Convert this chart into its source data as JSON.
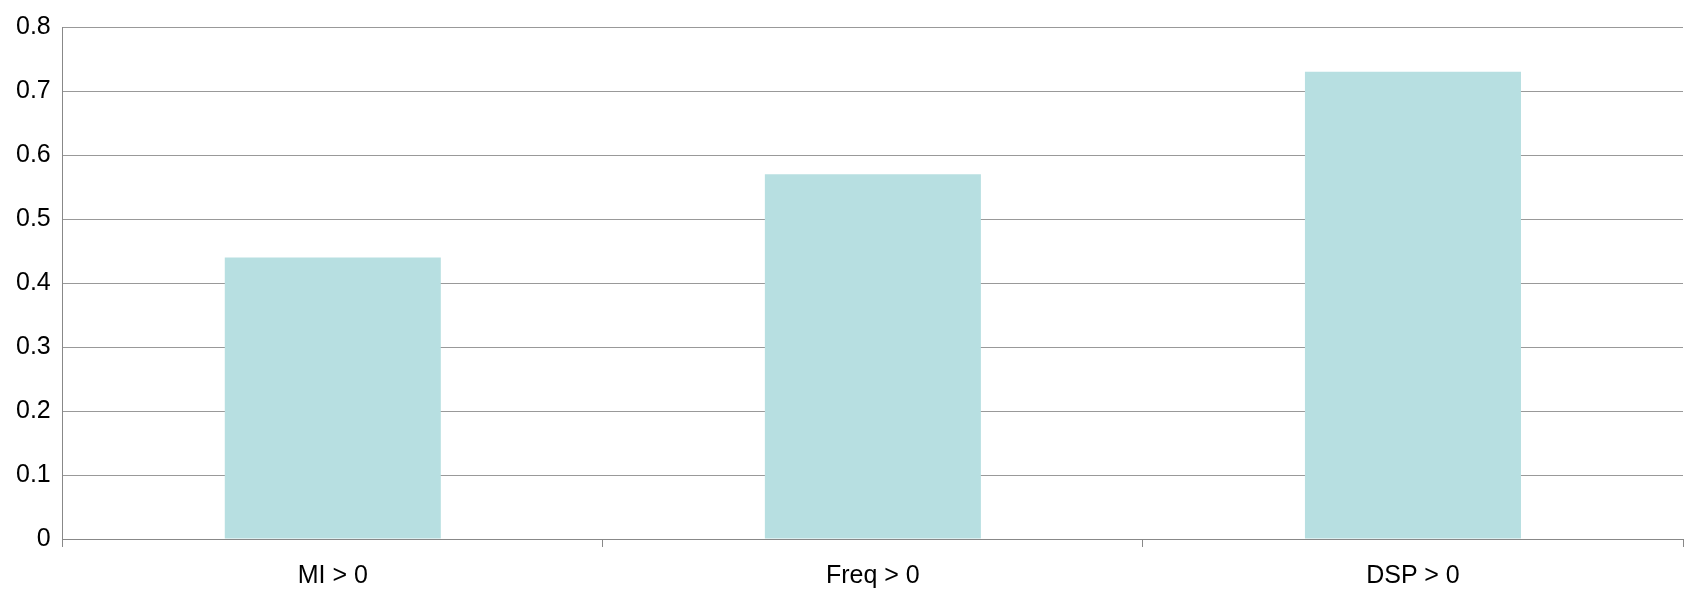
{
  "chart_data": {
    "type": "bar",
    "categories": [
      "MI > 0",
      "Freq > 0",
      "DSP > 0"
    ],
    "values": [
      0.44,
      0.57,
      0.73
    ],
    "color": "#b7dfe1",
    "ylim": [
      0,
      0.8
    ],
    "yticks": [
      0,
      0.1,
      0.2,
      0.3,
      0.4,
      0.5,
      0.6,
      0.7,
      0.8
    ],
    "grid": "y",
    "legend": false
  }
}
